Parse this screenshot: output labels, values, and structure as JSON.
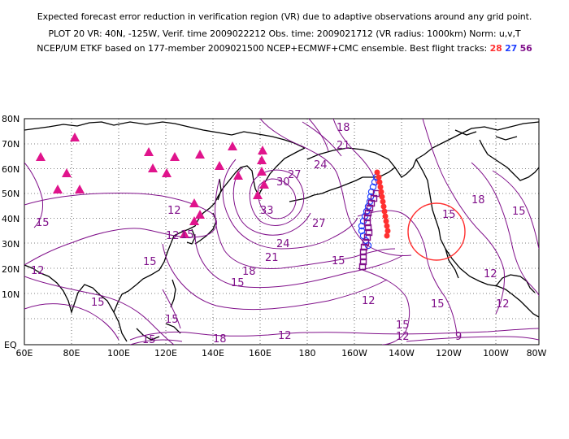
{
  "header": {
    "line1": "Expected forecast error reduction in verification region (VR) due to adaptive observations around any grid point.",
    "line2": "PLOT 20 VR: 40N, -125W, Verif. time 2009022212 Obs. time: 2009021712 (VR radius: 1000km) Norm: u,v,T",
    "line3_prefix": "NCEP/UM ETKF based on 177-member 2009021500 NCEP+ECMWF+CMC ensemble. Best flight tracks:",
    "track_a": "28",
    "track_b": "27",
    "track_c": "56"
  },
  "colors": {
    "contour": "#80108a",
    "track_28": "#ff3030",
    "track_27": "#2040ff",
    "track_56": "#80108a",
    "triangles": "#e0148c",
    "vr_circle": "#ff3030"
  },
  "map": {
    "lat_labels": [
      "80N",
      "70N",
      "60N",
      "50N",
      "40N",
      "30N",
      "20N",
      "10N",
      "EQ"
    ],
    "lon_labels": [
      "60E",
      "80E",
      "100E",
      "120E",
      "140E",
      "160E",
      "180",
      "160W",
      "140W",
      "120W",
      "100W",
      "80W"
    ],
    "verification_center": {
      "lat": 40,
      "lon": -125
    },
    "contour_labels": [
      "18",
      "21",
      "24",
      "27",
      "30",
      "33",
      "27",
      "24",
      "21",
      "15",
      "18",
      "15",
      "12",
      "15",
      "15",
      "12",
      "15",
      "15",
      "12",
      "15",
      "15",
      "12",
      "15",
      "18",
      "12",
      "12",
      "15",
      "12",
      "9",
      "15",
      "18",
      "12",
      "15"
    ]
  }
}
